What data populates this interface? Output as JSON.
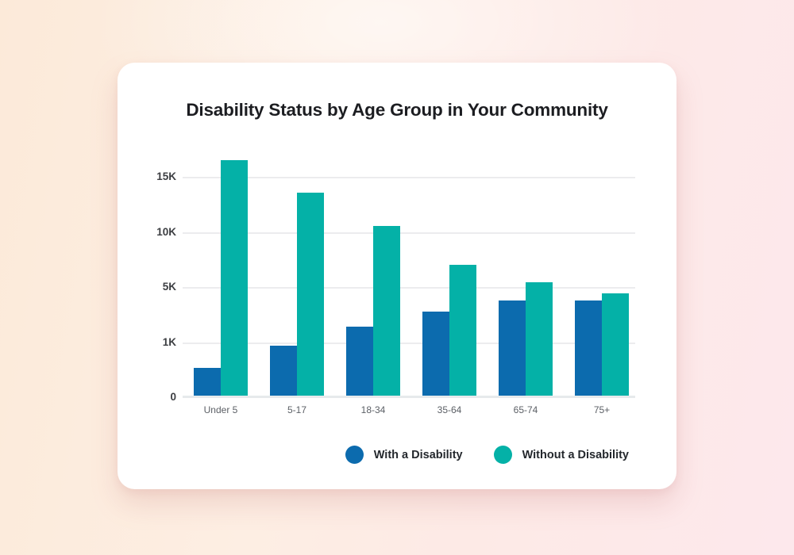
{
  "chart_data": {
    "type": "bar",
    "title": "Disability Status by Age Group in Your Community",
    "categories": [
      "Under 5",
      "5-17",
      "18-34",
      "35-64",
      "65-74",
      "75+"
    ],
    "series": [
      {
        "name": "With a Disability",
        "color": "#0c6bae",
        "values": [
          500,
          900,
          2000,
          3100,
          3900,
          3900
        ]
      },
      {
        "name": "Without a Disability",
        "color": "#04b1a7",
        "values": [
          16400,
          13400,
          10400,
          6900,
          5300,
          4400
        ]
      }
    ],
    "y_axis": {
      "ticks": [
        {
          "label": "0",
          "value": 0
        },
        {
          "label": "1K",
          "value": 1000
        },
        {
          "label": "5K",
          "value": 5000
        },
        {
          "label": "10K",
          "value": 10000
        },
        {
          "label": "15K",
          "value": 15000
        }
      ],
      "spacing": "equal-interval",
      "note": "ticks are evenly spaced; top bar extends above 15K"
    },
    "grid": true,
    "legend_position": "bottom-right"
  }
}
